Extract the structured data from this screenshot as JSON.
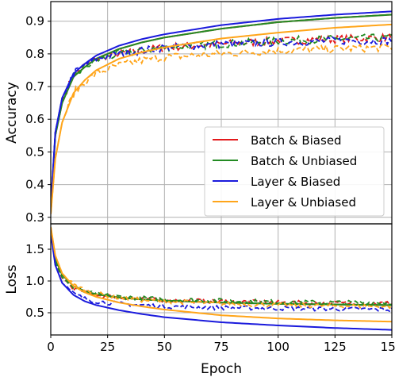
{
  "chart_data": [
    {
      "type": "line",
      "panel": "top",
      "title": "",
      "ylabel": "Accuracy",
      "xlabel": "",
      "xlim": [
        0,
        150
      ],
      "ylim": [
        0.28,
        0.96
      ],
      "xticks": [
        0,
        25,
        50,
        75,
        100,
        125,
        150
      ],
      "yticks": [
        0.3,
        0.4,
        0.5,
        0.6,
        0.7,
        0.8,
        0.9
      ],
      "ytick_labels": [
        "0.3",
        "0.4",
        "0.5",
        "0.6",
        "0.7",
        "0.8",
        "0.9"
      ],
      "grid": true,
      "legend_position": "center-right",
      "line_styles": {
        "train": "solid",
        "test": "dashed"
      },
      "series": [
        {
          "name": "Batch & Biased",
          "color": "#e31a1c",
          "train_x": [
            0,
            2,
            5,
            10,
            15,
            20,
            30,
            40,
            50,
            75,
            100,
            125,
            150
          ],
          "train": [
            0.33,
            0.55,
            0.65,
            0.73,
            0.76,
            0.785,
            0.815,
            0.835,
            0.85,
            0.877,
            0.897,
            0.91,
            0.92
          ],
          "test_x": [
            0,
            2,
            5,
            10,
            15,
            20,
            30,
            40,
            50,
            75,
            100,
            125,
            150
          ],
          "test": [
            0.33,
            0.56,
            0.66,
            0.735,
            0.765,
            0.785,
            0.8,
            0.81,
            0.82,
            0.83,
            0.84,
            0.845,
            0.85
          ]
        },
        {
          "name": "Batch & Unbiased",
          "color": "#238b23",
          "train_x": [
            0,
            2,
            5,
            10,
            15,
            20,
            30,
            40,
            50,
            75,
            100,
            125,
            150
          ],
          "train": [
            0.33,
            0.55,
            0.65,
            0.73,
            0.76,
            0.785,
            0.815,
            0.835,
            0.85,
            0.877,
            0.897,
            0.91,
            0.92
          ],
          "test_x": [
            0,
            2,
            5,
            10,
            15,
            20,
            30,
            40,
            50,
            75,
            100,
            125,
            150
          ],
          "test": [
            0.33,
            0.55,
            0.65,
            0.73,
            0.76,
            0.78,
            0.8,
            0.81,
            0.82,
            0.83,
            0.84,
            0.845,
            0.85
          ]
        },
        {
          "name": "Layer & Biased",
          "color": "#1a1adc",
          "train_x": [
            0,
            2,
            5,
            10,
            15,
            20,
            30,
            40,
            50,
            75,
            100,
            125,
            150
          ],
          "train": [
            0.33,
            0.56,
            0.665,
            0.74,
            0.77,
            0.795,
            0.825,
            0.845,
            0.86,
            0.888,
            0.907,
            0.92,
            0.93
          ],
          "test_x": [
            0,
            2,
            5,
            10,
            15,
            20,
            30,
            40,
            50,
            75,
            100,
            125,
            150
          ],
          "test": [
            0.33,
            0.56,
            0.665,
            0.74,
            0.765,
            0.785,
            0.8,
            0.81,
            0.82,
            0.83,
            0.835,
            0.84,
            0.84
          ]
        },
        {
          "name": "Layer & Unbiased",
          "color": "#ffa51a",
          "train_x": [
            0,
            2,
            5,
            10,
            15,
            20,
            30,
            40,
            50,
            75,
            100,
            125,
            150
          ],
          "train": [
            0.31,
            0.48,
            0.59,
            0.68,
            0.72,
            0.75,
            0.785,
            0.805,
            0.82,
            0.847,
            0.865,
            0.88,
            0.89
          ],
          "test_x": [
            0,
            2,
            5,
            10,
            15,
            20,
            30,
            40,
            50,
            75,
            100,
            125,
            150
          ],
          "test": [
            0.31,
            0.48,
            0.59,
            0.68,
            0.715,
            0.74,
            0.765,
            0.78,
            0.79,
            0.8,
            0.81,
            0.815,
            0.82
          ]
        }
      ]
    },
    {
      "type": "line",
      "panel": "bottom",
      "title": "",
      "ylabel": "Loss",
      "xlabel": "Epoch",
      "xlim": [
        0,
        150
      ],
      "ylim": [
        0.15,
        1.9
      ],
      "xticks": [
        0,
        25,
        50,
        75,
        100,
        125,
        150
      ],
      "yticks": [
        0.5,
        1.0,
        1.5
      ],
      "ytick_labels": [
        "0.5",
        "1.0",
        "1.5"
      ],
      "grid": true,
      "line_styles": {
        "train": "solid",
        "test": "dashed"
      },
      "series": [
        {
          "name": "Batch & Biased",
          "color": "#e31a1c",
          "train_x": [
            0,
            2,
            5,
            10,
            15,
            20,
            30,
            40,
            50,
            75,
            100,
            125,
            150
          ],
          "train": [
            1.8,
            1.35,
            1.1,
            0.92,
            0.84,
            0.79,
            0.74,
            0.71,
            0.69,
            0.66,
            0.64,
            0.63,
            0.62
          ],
          "test_x": [
            0,
            2,
            5,
            10,
            15,
            20,
            30,
            40,
            50,
            75,
            100,
            125,
            150
          ],
          "test": [
            1.75,
            1.3,
            1.05,
            0.88,
            0.82,
            0.78,
            0.74,
            0.72,
            0.7,
            0.68,
            0.66,
            0.65,
            0.65
          ]
        },
        {
          "name": "Batch & Unbiased",
          "color": "#238b23",
          "train_x": [
            0,
            2,
            5,
            10,
            15,
            20,
            30,
            40,
            50,
            75,
            100,
            125,
            150
          ],
          "train": [
            1.8,
            1.35,
            1.1,
            0.92,
            0.84,
            0.79,
            0.74,
            0.71,
            0.69,
            0.66,
            0.64,
            0.63,
            0.62
          ],
          "test_x": [
            0,
            2,
            5,
            10,
            15,
            20,
            30,
            40,
            50,
            75,
            100,
            125,
            150
          ],
          "test": [
            1.75,
            1.3,
            1.06,
            0.89,
            0.83,
            0.79,
            0.75,
            0.73,
            0.71,
            0.69,
            0.67,
            0.66,
            0.66
          ]
        },
        {
          "name": "Layer & Biased",
          "color": "#1a1adc",
          "train_x": [
            0,
            2,
            5,
            10,
            15,
            20,
            30,
            40,
            50,
            75,
            100,
            125,
            150
          ],
          "train": [
            1.75,
            1.25,
            0.97,
            0.78,
            0.68,
            0.62,
            0.54,
            0.48,
            0.43,
            0.35,
            0.3,
            0.26,
            0.23
          ],
          "test_x": [
            0,
            2,
            5,
            10,
            15,
            20,
            30,
            40,
            50,
            75,
            100,
            125,
            150
          ],
          "test": [
            1.75,
            1.25,
            0.97,
            0.8,
            0.72,
            0.68,
            0.64,
            0.62,
            0.6,
            0.58,
            0.57,
            0.56,
            0.55
          ]
        },
        {
          "name": "Layer & Unbiased",
          "color": "#ffa51a",
          "train_x": [
            0,
            2,
            5,
            10,
            15,
            20,
            30,
            40,
            50,
            75,
            100,
            125,
            150
          ],
          "train": [
            1.85,
            1.4,
            1.12,
            0.92,
            0.82,
            0.75,
            0.66,
            0.6,
            0.55,
            0.46,
            0.41,
            0.38,
            0.36
          ],
          "test_x": [
            0,
            2,
            5,
            10,
            15,
            20,
            30,
            40,
            50,
            75,
            100,
            125,
            150
          ],
          "test": [
            1.85,
            1.4,
            1.12,
            0.94,
            0.86,
            0.8,
            0.74,
            0.7,
            0.68,
            0.64,
            0.62,
            0.61,
            0.6
          ]
        }
      ]
    }
  ]
}
